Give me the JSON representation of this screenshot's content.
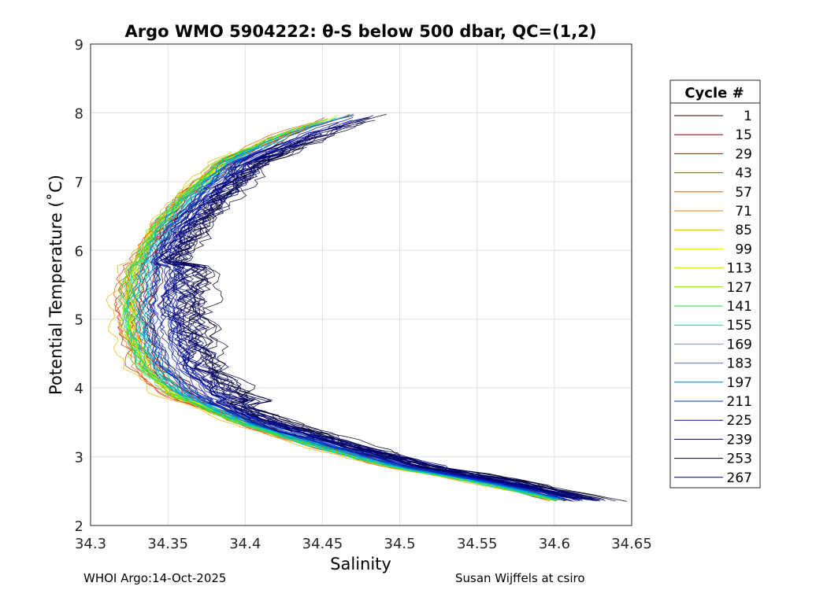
{
  "chart_data": {
    "type": "line",
    "title": "Argo WMO 5904222: θ-S below 500 dbar,  QC=(1,2)",
    "xlabel": "Salinity",
    "ylabel": "Potential Temperature (˚C)",
    "xlim": [
      34.3,
      34.65
    ],
    "ylim": [
      2,
      9
    ],
    "xticks": [
      "34.3",
      "34.35",
      "34.4",
      "34.45",
      "34.5",
      "34.55",
      "34.6",
      "34.65"
    ],
    "yticks": [
      "2",
      "3",
      "4",
      "5",
      "6",
      "7",
      "8",
      "9"
    ],
    "grid": true,
    "legend_title": "Cycle #",
    "legend_position": "outside-right",
    "mean_profile": [
      {
        "s": 34.47,
        "t": 8.0
      },
      {
        "s": 34.43,
        "t": 7.7
      },
      {
        "s": 34.39,
        "t": 7.3
      },
      {
        "s": 34.365,
        "t": 6.8
      },
      {
        "s": 34.345,
        "t": 6.3
      },
      {
        "s": 34.335,
        "t": 5.8
      },
      {
        "s": 34.33,
        "t": 5.3
      },
      {
        "s": 34.332,
        "t": 4.8
      },
      {
        "s": 34.34,
        "t": 4.3
      },
      {
        "s": 34.36,
        "t": 3.9
      },
      {
        "s": 34.4,
        "t": 3.5
      },
      {
        "s": 34.45,
        "t": 3.15
      },
      {
        "s": 34.5,
        "t": 2.85
      },
      {
        "s": 34.55,
        "t": 2.65
      },
      {
        "s": 34.585,
        "t": 2.48
      },
      {
        "s": 34.61,
        "t": 2.33
      }
    ],
    "series": [
      {
        "name": "1",
        "color": "#3a0000",
        "offset": 0.004
      },
      {
        "name": "15",
        "color": "#8b0000",
        "offset": 0.002
      },
      {
        "name": "29",
        "color": "#c80000",
        "offset": -0.001
      },
      {
        "name": "43",
        "color": "#e42a00",
        "offset": -0.004
      },
      {
        "name": "57",
        "color": "#e55a00",
        "offset": -0.006
      },
      {
        "name": "71",
        "color": "#e07800",
        "offset": -0.007
      },
      {
        "name": "85",
        "color": "#e6b400",
        "offset": -0.006
      },
      {
        "name": "99",
        "color": "#f2ee00",
        "offset": -0.005
      },
      {
        "name": "113",
        "color": "#c5f000",
        "offset": -0.004
      },
      {
        "name": "127",
        "color": "#7fe600",
        "offset": -0.003
      },
      {
        "name": "141",
        "color": "#2ee040",
        "offset": -0.002
      },
      {
        "name": "155",
        "color": "#00d890",
        "offset": -0.001
      },
      {
        "name": "169",
        "color": "#00d0c8",
        "offset": 0.0
      },
      {
        "name": "183",
        "color": "#00a8e0",
        "offset": 0.002
      },
      {
        "name": "197",
        "color": "#0070d8",
        "offset": 0.005
      },
      {
        "name": "211",
        "color": "#0032c8",
        "offset": 0.009
      },
      {
        "name": "225",
        "color": "#0010a8",
        "offset": 0.013
      },
      {
        "name": "239",
        "color": "#00006e",
        "offset": 0.018
      },
      {
        "name": "253",
        "color": "#000028",
        "offset": 0.024
      },
      {
        "name": "267",
        "color": "#000070",
        "offset": 0.02
      }
    ]
  },
  "footer": {
    "left": "WHOI Argo:14-Oct-2025",
    "right": "Susan Wijffels at csiro"
  }
}
